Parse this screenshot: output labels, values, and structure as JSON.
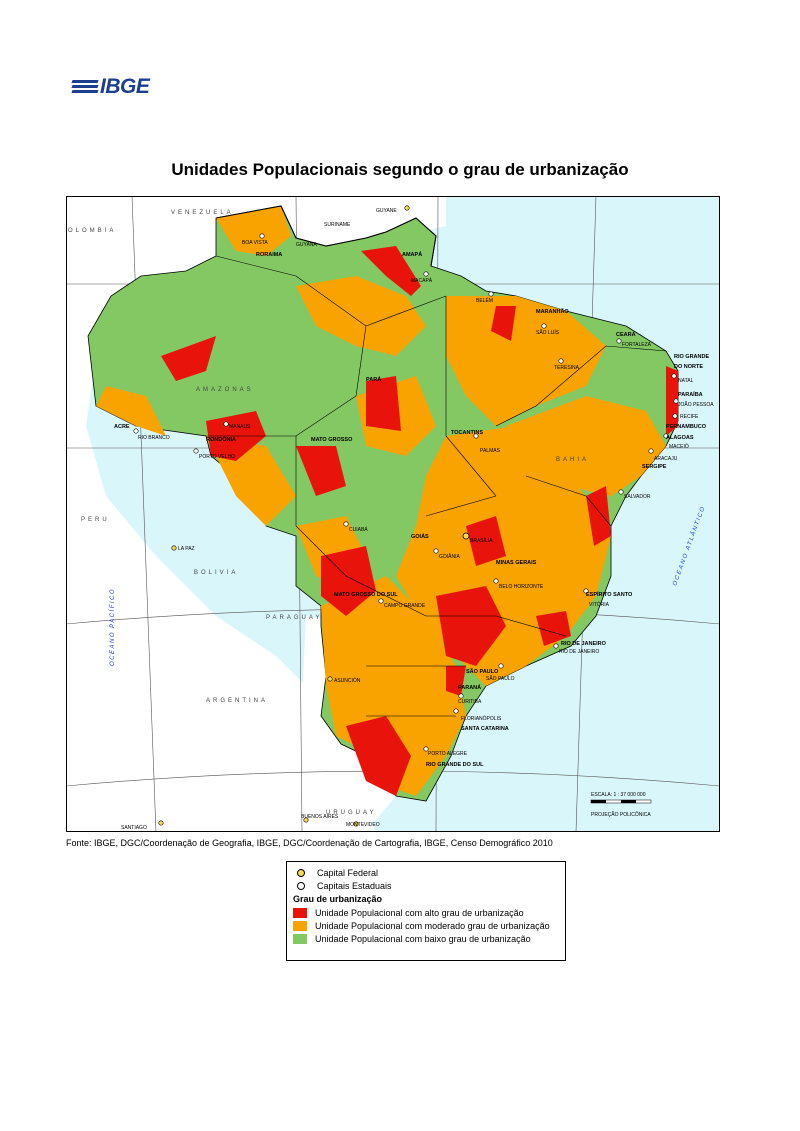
{
  "logo": {
    "text": "IBGE"
  },
  "title": "Unidades Populacionais segundo o grau de urbanização",
  "source": "Fonte: IBGE, DGC/Coordenação de Geografia, IBGE, DGC/Coordenação de Cartografia, IBGE, Censo Demográfico 2010",
  "colors": {
    "high": "#e8140c",
    "moderate": "#f8a300",
    "low": "#84c864",
    "water": "#d9f6fb",
    "neighbor": "#ffffff",
    "border": "#000000"
  },
  "legend": {
    "capital_federal": "Capital Federal",
    "capitais_estaduais": "Capitais Estaduais",
    "heading": "Grau de urbanização",
    "high": "Unidade Populacional com alto grau de urbanização",
    "moderate": "Unidade Populacional com moderado grau de urbanização",
    "low": "Unidade Populacional com baixo grau de urbanização"
  },
  "map": {
    "countries": {
      "venezuela": "VENEZUELA",
      "colombia": "OLOMBIA",
      "guyana": "GUYANA",
      "suriname": "SURINAME",
      "guyane": "GUYANE",
      "peru": "PERU",
      "bolivia": "BOLIVIA",
      "paraguay": "PARAGUAY",
      "argentina": "ARGENTINA",
      "uruguay": "URUGUAY"
    },
    "oceans": {
      "pacific": "OCEANO PACÍFICO",
      "atlantic": "OCEANO ATLÂNTICO"
    },
    "states": {
      "roraima": "RORAIMA",
      "amapa": "AMAPÁ",
      "amazonas": "AMAZONAS",
      "para": "PARÁ",
      "maranhao": "MARANHÃO",
      "ceara": "CEARÁ",
      "rio_grande_do_norte_1": "RIO GRANDE",
      "rio_grande_do_norte_2": "DO NORTE",
      "paraiba": "PARAÍBA",
      "pernambuco": "PERNAMBUCO",
      "alagoas": "ALAGOAS",
      "sergipe": "SERGIPE",
      "bahia": "BAHIA",
      "tocantins": "TOCANTINS",
      "acre": "ACRE",
      "rondonia": "RONDÔNIA",
      "mato_grosso": "MATO GROSSO",
      "goias": "GOIÁS",
      "minas_gerais": "MINAS GERAIS",
      "espirito_santo": "ESPÍRITO SANTO",
      "rio_de_janeiro": "RIO DE JANEIRO",
      "sao_paulo": "SÃO PAULO",
      "parana": "PARANÁ",
      "santa_catarina": "SANTA CATARINA",
      "rio_grande_do_sul": "RIO GRANDE DO SUL",
      "mato_grosso_do_sul": "MATO GROSSO DO SUL"
    },
    "capitals": {
      "boa_vista": "BOA VISTA",
      "macapa": "MACAPÁ",
      "belem": "BELÉM",
      "sao_luis": "SÃO LUÍS",
      "teresina": "TERESINA",
      "fortaleza": "FORTALEZA",
      "natal": "NATAL",
      "joao_pessoa": "JOÃO PESSOA",
      "recife": "RECIFE",
      "maceio": "MACEIÓ",
      "aracaju": "ARACAJU",
      "salvador": "SALVADOR",
      "palmas": "PALMAS",
      "manaus": "MANAUS",
      "rio_branco": "RIO BRANCO",
      "porto_velho": "PORTO VELHO",
      "cuiaba": "CUIABÁ",
      "goiania": "GOIÂNIA",
      "brasilia": "BRASÍLIA",
      "belo_horizonte": "BELO HORIZONTE",
      "vitoria": "VITÓRIA",
      "rio": "RIO DE JANEIRO",
      "sao_paulo_city": "SÃO PAULO",
      "curitiba": "CURITIBA",
      "florianopolis": "FLORIANÓPOLIS",
      "porto_alegre": "PORTO ALEGRE",
      "campo_grande": "CAMPO GRANDE",
      "la_paz": "LA PAZ",
      "asuncion": "ASUNCIÓN",
      "santiago": "SANTIAGO",
      "buenos_aires": "BUENOS AIRES",
      "montevideo": "MONTEVIDEO"
    },
    "scale": {
      "text": "ESCALA: 1 : 37 000 000",
      "projection": "PROJEÇÃO POLICÔNICA"
    }
  }
}
